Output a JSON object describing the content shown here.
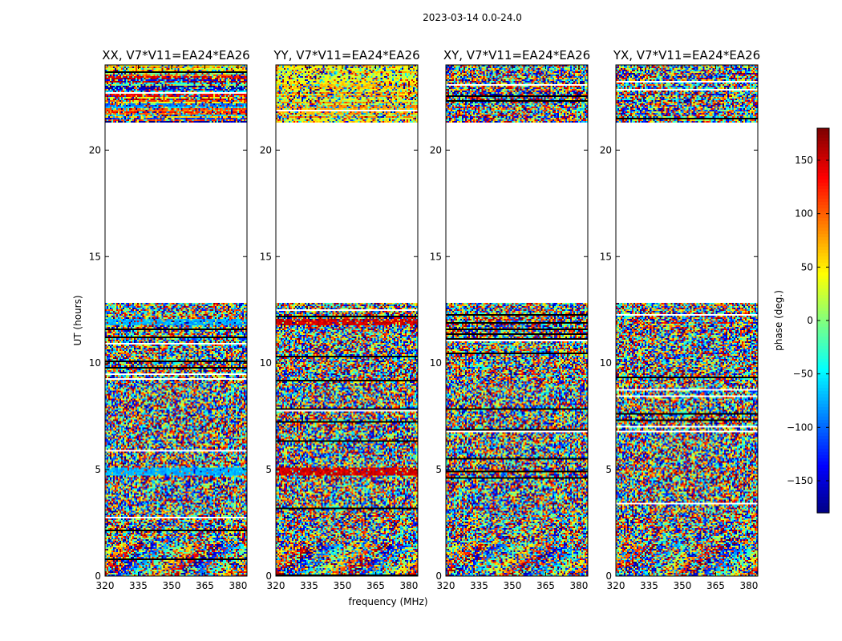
{
  "chart_data": {
    "type": "heatmap",
    "suptitle": "2023-03-14 0.0-24.0",
    "xlabel": "frequency (MHz)",
    "ylabel": "UT (hours)",
    "xlim": [
      320,
      384
    ],
    "ylim": [
      0,
      24
    ],
    "xticks": [
      320,
      335,
      350,
      365,
      380
    ],
    "yticks": [
      0,
      5,
      10,
      15,
      20
    ],
    "colormap": "jet",
    "colorbar": {
      "label": "phase (deg.)",
      "range": [
        -180,
        180
      ],
      "ticks": [
        -150,
        -100,
        -50,
        0,
        50,
        100,
        150
      ]
    },
    "data_blocks_hours": [
      [
        0.0,
        12.85
      ],
      [
        21.3,
        24.0
      ]
    ],
    "gap_hours": [
      12.85,
      21.3
    ],
    "panels": [
      {
        "title": "XX, V7*V11=EA24*EA26",
        "feature": "cyan band near 5 h and 12 h, red/blue streaks 21.3-24 h"
      },
      {
        "title": "YY, V7*V11=EA24*EA26",
        "feature": "red band near 5 h and 12 h, green/yellow streaks 21.3-24 h"
      },
      {
        "title": "XY, V7*V11=EA24*EA26",
        "feature": "noise-like phase"
      },
      {
        "title": "YX, V7*V11=EA24*EA26",
        "feature": "noise-like phase"
      }
    ]
  }
}
